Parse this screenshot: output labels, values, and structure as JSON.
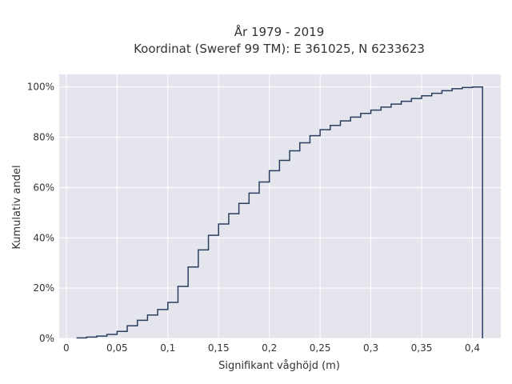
{
  "chart_data": {
    "type": "line",
    "subtype": "step-ecdf",
    "title": "År 1979 - 2019",
    "subtitle": "Koordinat (Sweref 99 TM): E 361025, N 6233623",
    "xlabel": "Signifikant våghöjd (m)",
    "ylabel": "Kumulativ andel",
    "xlim": [
      -0.007,
      0.428
    ],
    "ylim": [
      0,
      1.05
    ],
    "x_ticks": [
      0,
      0.05,
      0.1,
      0.15,
      0.2,
      0.25,
      0.3,
      0.35,
      0.4
    ],
    "x_tick_labels": [
      "0",
      "0,05",
      "0,1",
      "0,15",
      "0,2",
      "0,25",
      "0,3",
      "0,35",
      "0,4"
    ],
    "y_ticks": [
      0,
      0.2,
      0.4,
      0.6,
      0.8,
      1.0
    ],
    "y_tick_labels": [
      "0%",
      "20%",
      "40%",
      "60%",
      "80%",
      "100%"
    ],
    "grid": true,
    "line_color": "#2a3f5f",
    "background_color": "#e5e5ee",
    "x": [
      0.01,
      0.02,
      0.03,
      0.04,
      0.05,
      0.06,
      0.07,
      0.08,
      0.09,
      0.1,
      0.11,
      0.12,
      0.13,
      0.14,
      0.15,
      0.16,
      0.17,
      0.18,
      0.19,
      0.2,
      0.21,
      0.22,
      0.23,
      0.24,
      0.25,
      0.26,
      0.27,
      0.28,
      0.29,
      0.3,
      0.31,
      0.32,
      0.33,
      0.34,
      0.35,
      0.36,
      0.37,
      0.38,
      0.39,
      0.4,
      0.41
    ],
    "y": [
      0.002,
      0.005,
      0.009,
      0.016,
      0.028,
      0.05,
      0.072,
      0.093,
      0.115,
      0.143,
      0.207,
      0.284,
      0.352,
      0.41,
      0.455,
      0.496,
      0.537,
      0.578,
      0.622,
      0.667,
      0.708,
      0.746,
      0.778,
      0.806,
      0.83,
      0.847,
      0.865,
      0.88,
      0.895,
      0.908,
      0.92,
      0.932,
      0.943,
      0.954,
      0.965,
      0.975,
      0.985,
      0.993,
      0.998,
      1.0,
      0.0
    ]
  }
}
